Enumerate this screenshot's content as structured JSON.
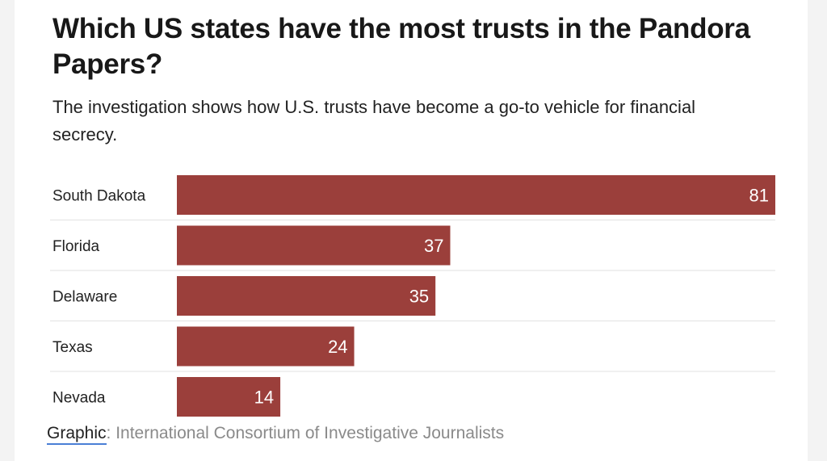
{
  "header": {
    "title": "Which US states have the most trusts in the Pandora Papers?",
    "subtitle": "The investigation shows how U.S. trusts have become a go-to vehicle for financial secrecy."
  },
  "footer": {
    "source_label": "Graphic",
    "source_separator": ":",
    "source_text": " International Consortium of Investigative Journalists"
  },
  "colors": {
    "bar": "#9b3f3b",
    "bar_label": "#ffffff",
    "row_line": "#e2e2e2",
    "category_text": "#222222"
  },
  "chart_data": {
    "type": "bar",
    "orientation": "horizontal",
    "title": "Which US states have the most trusts in the Pandora Papers?",
    "subtitle": "The investigation shows how U.S. trusts have become a go-to vehicle for financial secrecy.",
    "categories": [
      "South Dakota",
      "Florida",
      "Delaware",
      "Texas",
      "Nevada"
    ],
    "values": [
      81,
      37,
      35,
      24,
      14
    ],
    "xlim": [
      0,
      81
    ],
    "grid": false,
    "legend": "none",
    "data_labels": "inside-end"
  }
}
